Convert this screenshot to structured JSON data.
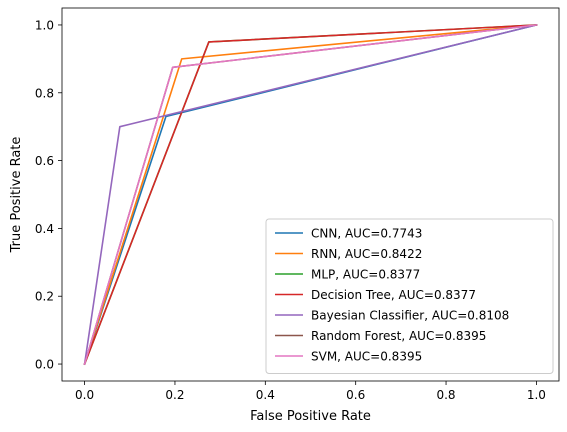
{
  "chart_data": {
    "type": "line",
    "title": "",
    "xlabel": "False Positive Rate",
    "ylabel": "True Positive Rate",
    "xlim": [
      -0.05,
      1.05
    ],
    "ylim": [
      -0.05,
      1.05
    ],
    "xticks": [
      0.0,
      0.2,
      0.4,
      0.6,
      0.8,
      1.0
    ],
    "yticks": [
      0.0,
      0.2,
      0.4,
      0.6,
      0.8,
      1.0
    ],
    "xtick_labels": [
      "0.0",
      "0.2",
      "0.4",
      "0.6",
      "0.8",
      "1.0"
    ],
    "ytick_labels": [
      "0.0",
      "0.2",
      "0.4",
      "0.6",
      "0.8",
      "1.0"
    ],
    "grid": false,
    "legend_position": "lower-right",
    "series": [
      {
        "name": "CNN, AUC=0.7743",
        "color": "#1f77b4",
        "x": [
          0,
          0.18,
          1
        ],
        "y": [
          0,
          0.73,
          1
        ]
      },
      {
        "name": "RNN, AUC=0.8422",
        "color": "#ff7f0e",
        "x": [
          0,
          0.215,
          1
        ],
        "y": [
          0,
          0.9,
          1
        ]
      },
      {
        "name": "MLP, AUC=0.8377",
        "color": "#2ca02c",
        "x": [
          0,
          0.275,
          1
        ],
        "y": [
          0,
          0.95,
          1
        ]
      },
      {
        "name": "Decision Tree, AUC=0.8377",
        "color": "#d62728",
        "x": [
          0,
          0.275,
          1
        ],
        "y": [
          0,
          0.95,
          1
        ]
      },
      {
        "name": "Bayesian Classifier, AUC=0.8108",
        "color": "#9467bd",
        "x": [
          0,
          0.078,
          1
        ],
        "y": [
          0,
          0.7,
          1
        ]
      },
      {
        "name": "Random Forest, AUC=0.8395",
        "color": "#8c564b",
        "x": [
          0,
          0.195,
          1
        ],
        "y": [
          0,
          0.875,
          1
        ]
      },
      {
        "name": "SVM, AUC=0.8395",
        "color": "#e377c2",
        "x": [
          0,
          0.195,
          1
        ],
        "y": [
          0,
          0.875,
          1
        ]
      }
    ]
  }
}
